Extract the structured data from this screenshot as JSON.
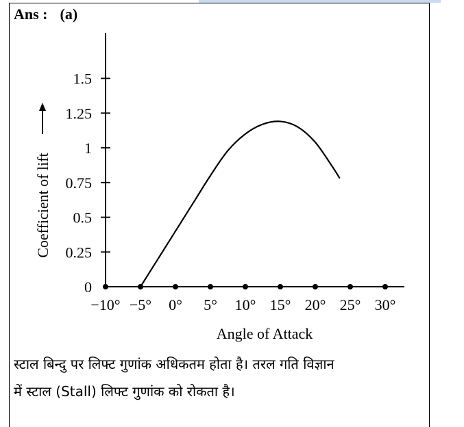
{
  "answer": {
    "label": "Ans :",
    "option": "(a)"
  },
  "chart_data": {
    "type": "line",
    "xlabel": "Angle of Attack",
    "ylabel": "Coefficient of lift",
    "x_ticks": [
      -10,
      -5,
      0,
      5,
      10,
      15,
      20,
      25,
      30
    ],
    "x_tick_labels": [
      "−10°",
      "−5°",
      "0°",
      "5°",
      "10°",
      "15°",
      "20°",
      "25°",
      "30°"
    ],
    "y_ticks": [
      0,
      0.25,
      0.5,
      0.75,
      1,
      1.25,
      1.5
    ],
    "y_tick_labels": [
      "0",
      "0.25",
      "0.5",
      "0.75",
      "1",
      "1.25",
      "1.5"
    ],
    "xlim": [
      -10,
      33
    ],
    "ylim": [
      0,
      1.85
    ],
    "series": [
      {
        "x": [
          -5,
          -2.5,
          0,
          2.5,
          5,
          7.5,
          10,
          12.5,
          15,
          17.5,
          20,
          22.5,
          23.5
        ],
        "y": [
          0,
          0.2,
          0.4,
          0.6,
          0.8,
          0.98,
          1.1,
          1.17,
          1.19,
          1.15,
          1.04,
          0.86,
          0.78
        ]
      }
    ],
    "grid": false
  },
  "caption": {
    "line1": "स्टाल बिन्दु पर लिफ्ट गुणांक अधिकतम होता है। तरल गति विज्ञान",
    "line2": "में स्टाल (Stall) लिफ्ट गुणांक को रोकता है।"
  }
}
